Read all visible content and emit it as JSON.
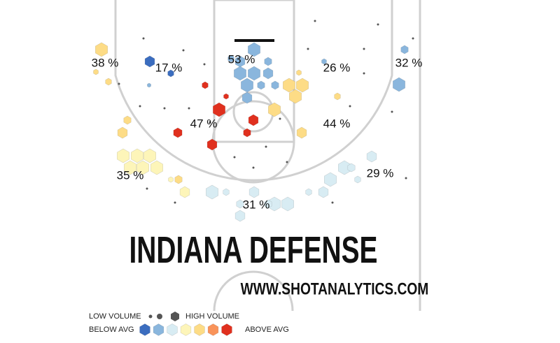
{
  "title": "INDIANA DEFENSE",
  "website": "WWW.SHOTANALYTICS.COM",
  "zones": [
    "38 %",
    "17 %",
    "53 %",
    "26 %",
    "32 %",
    "47 %",
    "44 %",
    "35 %",
    "29 %",
    "31 %"
  ],
  "legend": {
    "low_volume": "LOW VOLUME",
    "high_volume": "HIGH VOLUME",
    "below_avg": "BELOW AVG",
    "above_avg": "ABOVE AVG"
  }
}
